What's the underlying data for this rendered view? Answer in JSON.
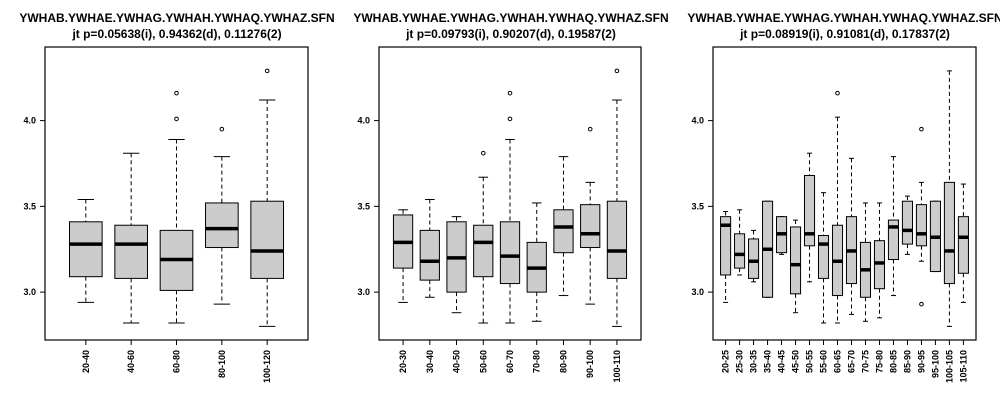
{
  "chart_data": [
    {
      "type": "boxplot",
      "title": "YWHAB.YWHAE.YWHAG.YWHAH.YWHAQ.YWHAZ.SFN",
      "subtitle": "jt p=0.05638(i), 0.94362(d), 0.11276(2)",
      "ylim": [
        2.75,
        4.4
      ],
      "yticks": [
        3.0,
        3.5,
        4.0
      ],
      "categories": [
        "20-40",
        "40-60",
        "60-80",
        "80-100",
        "100-120"
      ],
      "boxes": [
        {
          "category": "20-40",
          "whisker_low": 2.94,
          "q1": 3.09,
          "median": 3.28,
          "q3": 3.41,
          "whisker_high": 3.54,
          "outliers": []
        },
        {
          "category": "40-60",
          "whisker_low": 2.82,
          "q1": 3.08,
          "median": 3.28,
          "q3": 3.39,
          "whisker_high": 3.81,
          "outliers": []
        },
        {
          "category": "60-80",
          "whisker_low": 2.82,
          "q1": 3.01,
          "median": 3.19,
          "q3": 3.36,
          "whisker_high": 3.89,
          "outliers": [
            4.01,
            4.16
          ]
        },
        {
          "category": "80-100",
          "whisker_low": 2.93,
          "q1": 3.26,
          "median": 3.37,
          "q3": 3.52,
          "whisker_high": 3.79,
          "outliers": [
            3.95
          ]
        },
        {
          "category": "100-120",
          "whisker_low": 2.8,
          "q1": 3.08,
          "median": 3.24,
          "q3": 3.53,
          "whisker_high": 4.12,
          "outliers": [
            4.29
          ]
        }
      ]
    },
    {
      "type": "boxplot",
      "title": "YWHAB.YWHAE.YWHAG.YWHAH.YWHAQ.YWHAZ.SFN",
      "subtitle": "jt p=0.09793(i), 0.90207(d), 0.19587(2)",
      "ylim": [
        2.75,
        4.4
      ],
      "yticks": [
        3.0,
        3.5,
        4.0
      ],
      "categories": [
        "20-30",
        "30-40",
        "40-50",
        "50-60",
        "60-70",
        "70-80",
        "80-90",
        "90-100",
        "100-110"
      ],
      "boxes": [
        {
          "category": "20-30",
          "whisker_low": 2.94,
          "q1": 3.14,
          "median": 3.29,
          "q3": 3.45,
          "whisker_high": 3.48,
          "outliers": []
        },
        {
          "category": "30-40",
          "whisker_low": 2.97,
          "q1": 3.07,
          "median": 3.18,
          "q3": 3.36,
          "whisker_high": 3.54,
          "outliers": []
        },
        {
          "category": "40-50",
          "whisker_low": 2.88,
          "q1": 3.0,
          "median": 3.2,
          "q3": 3.41,
          "whisker_high": 3.44,
          "outliers": []
        },
        {
          "category": "50-60",
          "whisker_low": 2.82,
          "q1": 3.09,
          "median": 3.29,
          "q3": 3.39,
          "whisker_high": 3.67,
          "outliers": [
            3.81
          ]
        },
        {
          "category": "60-70",
          "whisker_low": 2.82,
          "q1": 3.05,
          "median": 3.21,
          "q3": 3.41,
          "whisker_high": 3.89,
          "outliers": [
            4.01,
            4.16
          ]
        },
        {
          "category": "70-80",
          "whisker_low": 2.83,
          "q1": 3.0,
          "median": 3.14,
          "q3": 3.29,
          "whisker_high": 3.52,
          "outliers": []
        },
        {
          "category": "80-90",
          "whisker_low": 2.98,
          "q1": 3.23,
          "median": 3.38,
          "q3": 3.48,
          "whisker_high": 3.79,
          "outliers": []
        },
        {
          "category": "90-100",
          "whisker_low": 2.93,
          "q1": 3.26,
          "median": 3.34,
          "q3": 3.51,
          "whisker_high": 3.64,
          "outliers": [
            3.95
          ]
        },
        {
          "category": "100-110",
          "whisker_low": 2.8,
          "q1": 3.08,
          "median": 3.24,
          "q3": 3.53,
          "whisker_high": 4.12,
          "outliers": [
            4.29
          ]
        }
      ]
    },
    {
      "type": "boxplot",
      "title": "YWHAB.YWHAE.YWHAG.YWHAH.YWHAQ.YWHAZ.SFN",
      "subtitle": "jt p=0.08919(i), 0.91081(d), 0.17837(2)",
      "ylim": [
        2.75,
        4.4
      ],
      "yticks": [
        3.0,
        3.5,
        4.0
      ],
      "categories": [
        "20-25",
        "25-30",
        "30-35",
        "35-40",
        "40-45",
        "45-50",
        "50-55",
        "55-60",
        "60-65",
        "65-70",
        "70-75",
        "75-80",
        "80-85",
        "85-90",
        "90-95",
        "95-100",
        "100-105",
        "105-110"
      ],
      "boxes": [
        {
          "category": "20-25",
          "whisker_low": 2.94,
          "q1": 3.1,
          "median": 3.39,
          "q3": 3.44,
          "whisker_high": 3.47,
          "outliers": []
        },
        {
          "category": "25-30",
          "whisker_low": 3.1,
          "q1": 3.14,
          "median": 3.22,
          "q3": 3.34,
          "whisker_high": 3.48,
          "outliers": []
        },
        {
          "category": "30-35",
          "whisker_low": 3.06,
          "q1": 3.08,
          "median": 3.18,
          "q3": 3.31,
          "whisker_high": 3.36,
          "outliers": []
        },
        {
          "category": "35-40",
          "whisker_low": 2.97,
          "q1": 2.97,
          "median": 3.25,
          "q3": 3.53,
          "whisker_high": 3.53,
          "outliers": []
        },
        {
          "category": "40-45",
          "whisker_low": 3.22,
          "q1": 3.23,
          "median": 3.34,
          "q3": 3.44,
          "whisker_high": 3.44,
          "outliers": []
        },
        {
          "category": "45-50",
          "whisker_low": 2.88,
          "q1": 2.99,
          "median": 3.16,
          "q3": 3.38,
          "whisker_high": 3.42,
          "outliers": []
        },
        {
          "category": "50-55",
          "whisker_low": 3.06,
          "q1": 3.27,
          "median": 3.34,
          "q3": 3.68,
          "whisker_high": 3.81,
          "outliers": []
        },
        {
          "category": "55-60",
          "whisker_low": 2.82,
          "q1": 3.08,
          "median": 3.28,
          "q3": 3.33,
          "whisker_high": 3.58,
          "outliers": []
        },
        {
          "category": "60-65",
          "whisker_low": 2.82,
          "q1": 2.98,
          "median": 3.18,
          "q3": 3.39,
          "whisker_high": 4.02,
          "outliers": [
            4.16
          ]
        },
        {
          "category": "65-70",
          "whisker_low": 2.87,
          "q1": 3.05,
          "median": 3.24,
          "q3": 3.44,
          "whisker_high": 3.78,
          "outliers": []
        },
        {
          "category": "70-75",
          "whisker_low": 2.83,
          "q1": 2.97,
          "median": 3.13,
          "q3": 3.29,
          "whisker_high": 3.52,
          "outliers": []
        },
        {
          "category": "75-80",
          "whisker_low": 2.85,
          "q1": 3.02,
          "median": 3.17,
          "q3": 3.3,
          "whisker_high": 3.52,
          "outliers": []
        },
        {
          "category": "80-85",
          "whisker_low": 2.98,
          "q1": 3.19,
          "median": 3.38,
          "q3": 3.42,
          "whisker_high": 3.79,
          "outliers": []
        },
        {
          "category": "85-90",
          "whisker_low": 3.22,
          "q1": 3.28,
          "median": 3.36,
          "q3": 3.53,
          "whisker_high": 3.56,
          "outliers": []
        },
        {
          "category": "90-95",
          "whisker_low": 3.18,
          "q1": 3.27,
          "median": 3.34,
          "q3": 3.51,
          "whisker_high": 3.64,
          "outliers": [
            2.93,
            3.95
          ]
        },
        {
          "category": "95-100",
          "whisker_low": 3.12,
          "q1": 3.12,
          "median": 3.32,
          "q3": 3.53,
          "whisker_high": 3.53,
          "outliers": []
        },
        {
          "category": "100-105",
          "whisker_low": 2.8,
          "q1": 3.05,
          "median": 3.24,
          "q3": 3.64,
          "whisker_high": 4.29,
          "outliers": []
        },
        {
          "category": "105-110",
          "whisker_low": 2.94,
          "q1": 3.11,
          "median": 3.32,
          "q3": 3.44,
          "whisker_high": 3.63,
          "outliers": []
        }
      ]
    }
  ]
}
